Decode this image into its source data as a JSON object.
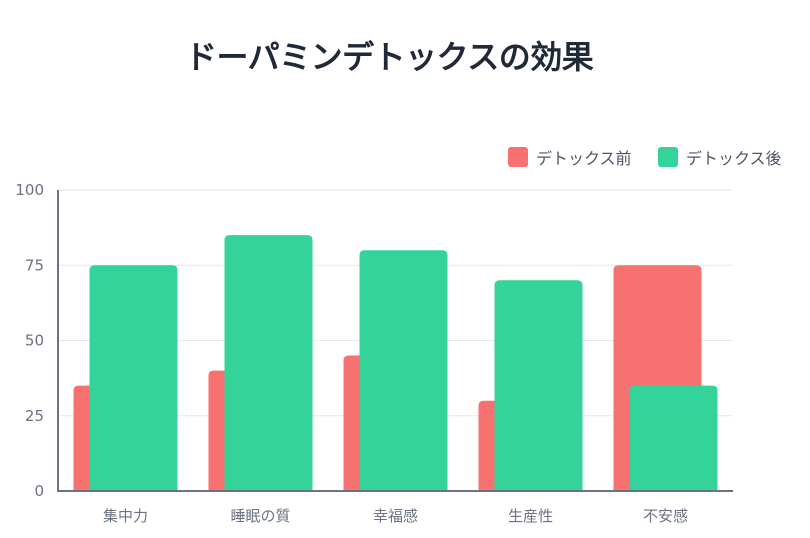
{
  "chart_data": {
    "type": "bar",
    "title": "ドーパミンデトックスの効果",
    "xlabel": "",
    "ylabel": "",
    "categories": [
      "集中力",
      "睡眠の質",
      "幸福感",
      "生産性",
      "不安感"
    ],
    "series": [
      {
        "name": "デトックス前",
        "values": [
          35,
          40,
          45,
          30,
          75
        ],
        "color": "#f87171"
      },
      {
        "name": "デトックス後",
        "values": [
          75,
          85,
          80,
          70,
          35
        ],
        "color": "#34d399"
      }
    ],
    "ylim": [
      0,
      100
    ],
    "yticks": [
      0,
      25,
      50,
      75,
      100
    ],
    "grid": true,
    "legend_position": "top-right",
    "bar_overlap": true
  }
}
